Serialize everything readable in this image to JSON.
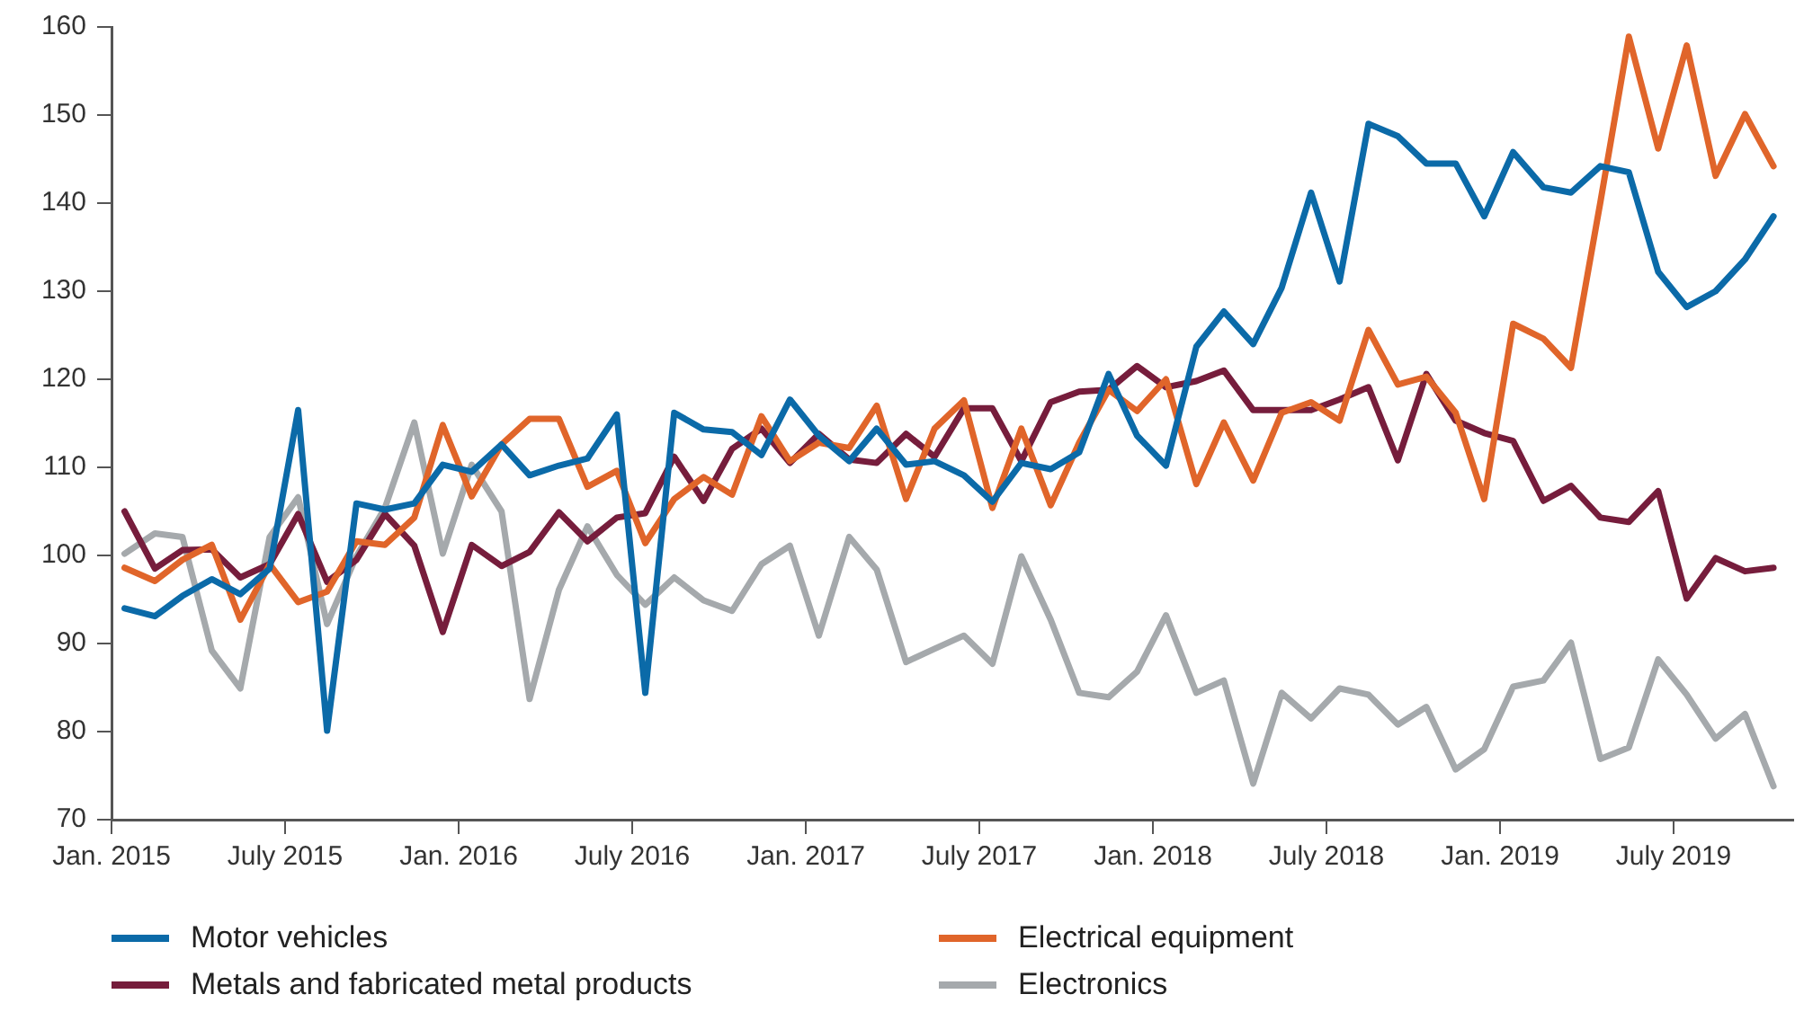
{
  "chart_data": {
    "type": "line",
    "x": [
      "2015-01-15",
      "2015-02-15",
      "2015-03-15",
      "2015-04-15",
      "2015-05-15",
      "2015-06-15",
      "2015-07-15",
      "2015-08-15",
      "2015-09-15",
      "2015-10-15",
      "2015-11-15",
      "2015-12-15",
      "2016-01-15",
      "2016-02-15",
      "2016-03-15",
      "2016-04-15",
      "2016-05-15",
      "2016-06-15",
      "2016-07-15",
      "2016-08-15",
      "2016-09-15",
      "2016-10-15",
      "2016-11-15",
      "2016-12-15",
      "2017-01-15",
      "2017-02-15",
      "2017-03-15",
      "2017-04-15",
      "2017-05-15",
      "2017-06-15",
      "2017-07-15",
      "2017-08-15",
      "2017-09-15",
      "2017-10-15",
      "2017-11-15",
      "2017-12-15",
      "2018-01-15",
      "2018-02-15",
      "2018-03-15",
      "2018-04-15",
      "2018-05-15",
      "2018-06-15",
      "2018-07-15",
      "2018-08-15",
      "2018-09-15",
      "2018-10-15",
      "2018-11-15",
      "2018-12-15",
      "2019-01-15",
      "2019-02-15",
      "2019-03-15",
      "2019-04-15",
      "2019-05-15",
      "2019-06-15",
      "2019-07-15",
      "2019-08-15",
      "2019-09-15",
      "2019-10-15"
    ],
    "series": [
      {
        "name": "Motor vehicles",
        "color": "#0b6aa8",
        "values": [
          94.0,
          93.1,
          95.4,
          97.3,
          95.6,
          98.5,
          116.5,
          80.1,
          105.9,
          105.2,
          105.9,
          110.3,
          109.5,
          112.6,
          109.1,
          110.2,
          111.0,
          116.0,
          84.4,
          116.2,
          114.3,
          114.0,
          111.4,
          117.7,
          113.6,
          110.7,
          114.4,
          110.3,
          110.7,
          109.1,
          106.1,
          110.5,
          109.8,
          111.7,
          120.6,
          113.6,
          110.2,
          123.7,
          127.7,
          124.0,
          130.4,
          141.2,
          131.1,
          149.0,
          147.6,
          144.5,
          144.5,
          138.5,
          145.8,
          141.8,
          141.2,
          144.2,
          143.5,
          132.2,
          128.2,
          130.0,
          133.6,
          138.5
        ]
      },
      {
        "name": "Electrical equipment",
        "color": "#e0652a",
        "values": [
          98.6,
          97.1,
          99.5,
          101.2,
          92.7,
          99.0,
          94.7,
          95.9,
          101.6,
          101.2,
          104.3,
          114.8,
          106.7,
          112.6,
          115.5,
          115.5,
          107.8,
          109.6,
          101.4,
          106.4,
          108.9,
          106.9,
          115.8,
          110.7,
          112.8,
          112.2,
          117.0,
          106.4,
          114.4,
          117.6,
          105.4,
          114.4,
          105.7,
          112.8,
          118.8,
          116.4,
          120.0,
          108.1,
          115.1,
          108.5,
          116.2,
          117.4,
          115.3,
          125.6,
          119.4,
          120.3,
          116.2,
          106.4,
          126.3,
          124.6,
          121.3,
          140.1,
          158.9,
          146.2,
          157.9,
          143.1,
          150.1,
          144.2
        ]
      },
      {
        "name": "Metals and fabricated metal products",
        "color": "#761d3c",
        "values": [
          105.0,
          98.5,
          100.6,
          100.7,
          97.5,
          99.0,
          104.7,
          97.0,
          99.5,
          104.7,
          101.1,
          91.3,
          101.2,
          98.8,
          100.4,
          104.9,
          101.6,
          104.3,
          104.8,
          111.2,
          106.2,
          112.1,
          114.4,
          110.5,
          113.8,
          110.9,
          110.5,
          113.8,
          111.2,
          116.7,
          116.7,
          110.7,
          117.4,
          118.6,
          118.8,
          121.5,
          119.1,
          119.8,
          121.0,
          116.5,
          116.5,
          116.5,
          117.7,
          119.1,
          110.8,
          120.6,
          115.3,
          113.9,
          113.0,
          106.2,
          107.9,
          104.3,
          103.8,
          107.3,
          95.1,
          99.7,
          98.2,
          98.6
        ]
      },
      {
        "name": "Electronics",
        "color": "#a5a9ac",
        "values": [
          100.2,
          102.5,
          102.1,
          89.2,
          84.9,
          102.1,
          106.6,
          92.2,
          99.9,
          105.4,
          115.1,
          100.2,
          110.3,
          105.0,
          83.7,
          96.1,
          103.3,
          97.8,
          94.4,
          97.5,
          94.9,
          93.7,
          99.0,
          101.1,
          90.9,
          102.1,
          98.4,
          87.9,
          89.4,
          90.9,
          87.7,
          99.9,
          92.7,
          84.4,
          83.9,
          86.8,
          93.2,
          84.4,
          85.8,
          74.1,
          84.4,
          81.5,
          84.9,
          84.2,
          80.8,
          82.8,
          75.7,
          78.0,
          85.1,
          85.8,
          90.1,
          76.9,
          78.2,
          88.2,
          84.2,
          79.2,
          82.0,
          73.8
        ]
      }
    ],
    "xlim": [
      "2015-01-01",
      "2019-11-05"
    ],
    "xticks": [
      {
        "value": "2015-01",
        "label": "Jan. 2015"
      },
      {
        "value": "2015-07",
        "label": "July 2015"
      },
      {
        "value": "2016-01",
        "label": "Jan. 2016"
      },
      {
        "value": "2016-07",
        "label": "July 2016"
      },
      {
        "value": "2017-01",
        "label": "Jan. 2017"
      },
      {
        "value": "2017-07",
        "label": "July 2017"
      },
      {
        "value": "2018-01",
        "label": "Jan. 2018"
      },
      {
        "value": "2018-07",
        "label": "July 2018"
      },
      {
        "value": "2019-01",
        "label": "Jan. 2019"
      },
      {
        "value": "2019-07",
        "label": "July 2019"
      }
    ],
    "ylim": [
      70,
      160
    ],
    "yticks": [
      70,
      80,
      90,
      100,
      110,
      120,
      130,
      140,
      150,
      160
    ],
    "grid": false,
    "legend": "bottom",
    "marker": "none",
    "line_style": "solid"
  }
}
